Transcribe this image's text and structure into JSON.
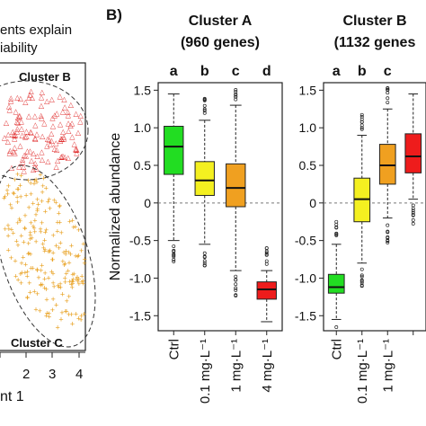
{
  "panel_a": {
    "title_line1": "ents explain",
    "title_line2": "iability",
    "cluster_b_label": "Cluster B",
    "cluster_c_label": "Cluster C",
    "x_ticks": [
      "2",
      "3",
      "4"
    ],
    "xlabel": "nt 1",
    "colors": {
      "cluster_b": "#e03030",
      "cluster_c": "#e8a020"
    }
  },
  "panel_b": {
    "label": "B)",
    "ylabel": "Normalized abundance"
  },
  "chart_data": [
    {
      "type": "box",
      "title": "Cluster A",
      "subtitle": "(960 genes)",
      "ylabel": "Normalized abundance",
      "ylim": [
        -1.7,
        1.6
      ],
      "y_ticks": [
        "1.5",
        "1.0",
        "0.5",
        "0",
        "-0.5",
        "-1.0",
        "-1.5"
      ],
      "y_tick_values": [
        1.5,
        1.0,
        0.5,
        0,
        -0.5,
        -1.0,
        -1.5
      ],
      "categories": [
        "Ctrl",
        "0.1 mg·L⁻¹",
        "1 mg·L⁻¹",
        "4 mg·L⁻¹"
      ],
      "letters": [
        "a",
        "b",
        "c",
        "d"
      ],
      "colors": [
        "#22dd22",
        "#f4f020",
        "#f0a020",
        "#ee1c1c"
      ],
      "boxes": [
        {
          "min": -0.5,
          "q1": 0.38,
          "median": 0.75,
          "q3": 1.02,
          "max": 1.45
        },
        {
          "min": -0.55,
          "q1": 0.1,
          "median": 0.3,
          "q3": 0.55,
          "max": 1.1
        },
        {
          "min": -0.9,
          "q1": -0.05,
          "median": 0.2,
          "q3": 0.52,
          "max": 1.3
        },
        {
          "min": -1.58,
          "q1": -1.28,
          "median": -1.15,
          "q3": -1.05,
          "max": -0.9
        }
      ],
      "reference_line": 0
    },
    {
      "type": "box",
      "title": "Cluster B",
      "subtitle": "(1132 genes",
      "ylim": [
        -1.7,
        1.6
      ],
      "y_ticks": [
        "1.5",
        "1.0",
        "0.5",
        "0",
        "-0.5",
        "-1.0",
        "-1.5"
      ],
      "y_tick_values": [
        1.5,
        1.0,
        0.5,
        0,
        -0.5,
        -1.0,
        -1.5
      ],
      "categories": [
        "Ctrl",
        "0.1 mg·L⁻¹",
        "1 mg·L⁻¹",
        ""
      ],
      "letters": [
        "a",
        "b",
        "c",
        ""
      ],
      "colors": [
        "#22dd22",
        "#f4f020",
        "#f0a020",
        "#ee1c1c"
      ],
      "boxes": [
        {
          "min": -1.55,
          "q1": -1.2,
          "median": -1.12,
          "q3": -0.95,
          "max": -0.55
        },
        {
          "min": -0.8,
          "q1": -0.25,
          "median": 0.05,
          "q3": 0.33,
          "max": 0.9
        },
        {
          "min": -0.2,
          "q1": 0.25,
          "median": 0.5,
          "q3": 0.78,
          "max": 1.25
        },
        {
          "min": 0.05,
          "q1": 0.4,
          "median": 0.62,
          "q3": 0.92,
          "max": 1.45
        }
      ],
      "reference_line": 0
    }
  ]
}
